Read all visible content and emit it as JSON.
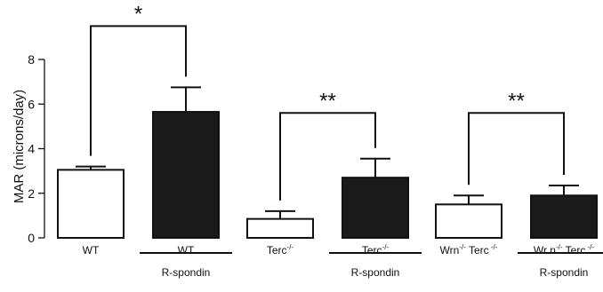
{
  "chart_data": {
    "type": "bar",
    "title": "",
    "xlabel": "",
    "ylabel": "MAR (microns/day)",
    "ylim": [
      0,
      8
    ],
    "yticks": [
      0,
      2,
      4,
      6,
      8
    ],
    "grid": false,
    "legend": "none",
    "colors": {
      "open_bar": "#ffffff",
      "filled_bar": "#1a1a1a",
      "stroke": "#111111"
    },
    "bars": [
      {
        "label": "WT",
        "sup": "",
        "value": 3.05,
        "error": 0.15,
        "fill": "open",
        "treatment": ""
      },
      {
        "label": "WT",
        "sup": "",
        "value": 5.65,
        "error": 1.1,
        "fill": "filled",
        "treatment": "R-spondin"
      },
      {
        "label": "Terc",
        "sup": "-/-",
        "value": 0.85,
        "error": 0.35,
        "fill": "open",
        "treatment": ""
      },
      {
        "label": "Terc",
        "sup": "-/-",
        "value": 2.7,
        "error": 0.85,
        "fill": "filled",
        "treatment": "R-spondin"
      },
      {
        "label": "Wrn",
        "sup": "-/-",
        "label2": " Terc",
        "sup2": "-/-",
        "value": 1.5,
        "error": 0.4,
        "fill": "open",
        "treatment": ""
      },
      {
        "label": "Wrn",
        "sup": "-/-",
        "label2": " Terc",
        "sup2": "-/-",
        "value": 1.9,
        "error": 0.45,
        "fill": "filled",
        "treatment": "R-spondin"
      }
    ],
    "bar_text": [
      {
        "a": "WT",
        "b": "",
        "c": "",
        "d": ""
      },
      {
        "a": "WT",
        "b": "",
        "c": "",
        "d": ""
      },
      {
        "a": "Terc",
        "b": "-/-",
        "c": "",
        "d": ""
      },
      {
        "a": "Terc",
        "b": "-/-",
        "c": "",
        "d": ""
      },
      {
        "a": "Wrn",
        "b": "-/-",
        "c": " Terc",
        "d": " -/-"
      },
      {
        "a": "Wr n",
        "b": "-/-",
        "c": " Terc",
        "d": " -/-"
      }
    ],
    "treatment_label": "R-spondin",
    "annotations": [
      {
        "from": 0,
        "to": 1,
        "label": "*",
        "level": 9.5
      },
      {
        "from": 2,
        "to": 3,
        "label": "**",
        "level": 5.6
      },
      {
        "from": 4,
        "to": 5,
        "label": "**",
        "level": 5.6
      }
    ]
  }
}
